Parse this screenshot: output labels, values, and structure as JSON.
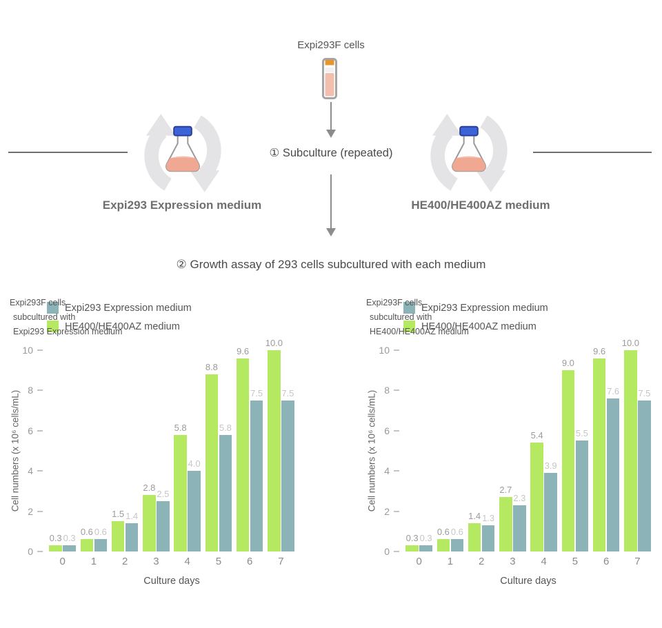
{
  "flow": {
    "cells_label": "Expi293F cells",
    "subculture_label": "① Subculture (repeated)",
    "growth_assay_label": "② Growth assay of 293 cells subcultured with each medium",
    "left_medium_label": "Expi293 Expression medium",
    "right_medium_label": "HE400/HE400AZ medium"
  },
  "colors": {
    "expi293_bar": "#8cb4b8",
    "he400_bar": "#b5e961",
    "arrow": "#8c8c8c",
    "divider": "#6f6f6f",
    "cycle_icon": "#e4e4e6",
    "flask_cap": "#3d63d8",
    "flask_cap_edge": "#2b3f96",
    "flask_liquid": "#f0a893",
    "flask_outline": "#9a9a9a",
    "vial_cap": "#e8952c",
    "vial_liquid": "#f2bfae",
    "vial_outline": "#a5a5a5"
  },
  "chart_data": [
    {
      "type": "bar",
      "annotation_lines": [
        "Expi293F cells",
        "subcultured with",
        "Expi293 Expression medium"
      ],
      "legend": [
        {
          "label": "Expi293 Expression medium",
          "color": "#8cb4b8"
        },
        {
          "label": "HE400/HE400AZ medium",
          "color": "#b5e961"
        }
      ],
      "categories": [
        "0",
        "1",
        "2",
        "3",
        "4",
        "5",
        "6",
        "7"
      ],
      "series": [
        {
          "name": "HE400/HE400AZ medium",
          "color": "#b5e961",
          "label_color": "#9b9b9b",
          "values": [
            0.3,
            0.6,
            1.5,
            2.8,
            5.8,
            8.8,
            9.6,
            10.0
          ]
        },
        {
          "name": "Expi293 Expression medium",
          "color": "#8cb4b8",
          "label_color": "#c6c6c6",
          "values": [
            0.3,
            0.6,
            1.4,
            2.5,
            4.0,
            5.8,
            7.5,
            7.5
          ]
        }
      ],
      "xlabel": "Culture days",
      "ylabel": "Cell numbers (x 10⁶ cells/mL)",
      "ylim": [
        0,
        10
      ],
      "yticks": [
        0,
        2,
        4,
        6,
        8,
        10
      ],
      "grid": false,
      "legend_position": "top-left"
    },
    {
      "type": "bar",
      "annotation_lines": [
        "Expi293F cells",
        "subcultured with",
        "HE400/HE400AZ medium"
      ],
      "legend": [
        {
          "label": "Expi293 Expression medium",
          "color": "#8cb4b8"
        },
        {
          "label": "HE400/HE400AZ medium",
          "color": "#b5e961"
        }
      ],
      "categories": [
        "0",
        "1",
        "2",
        "3",
        "4",
        "5",
        "6",
        "7"
      ],
      "series": [
        {
          "name": "HE400/HE400AZ medium",
          "color": "#b5e961",
          "label_color": "#9b9b9b",
          "values": [
            0.3,
            0.6,
            1.4,
            2.7,
            5.4,
            9.0,
            9.6,
            10.0
          ]
        },
        {
          "name": "Expi293 Expression medium",
          "color": "#8cb4b8",
          "label_color": "#c6c6c6",
          "values": [
            0.3,
            0.6,
            1.3,
            2.3,
            3.9,
            5.5,
            7.6,
            7.5
          ]
        }
      ],
      "xlabel": "Culture days",
      "ylabel": "Cell numbers (x 10⁶ cells/mL)",
      "ylim": [
        0,
        10
      ],
      "yticks": [
        0,
        2,
        4,
        6,
        8,
        10
      ],
      "grid": false,
      "legend_position": "top-left"
    }
  ]
}
